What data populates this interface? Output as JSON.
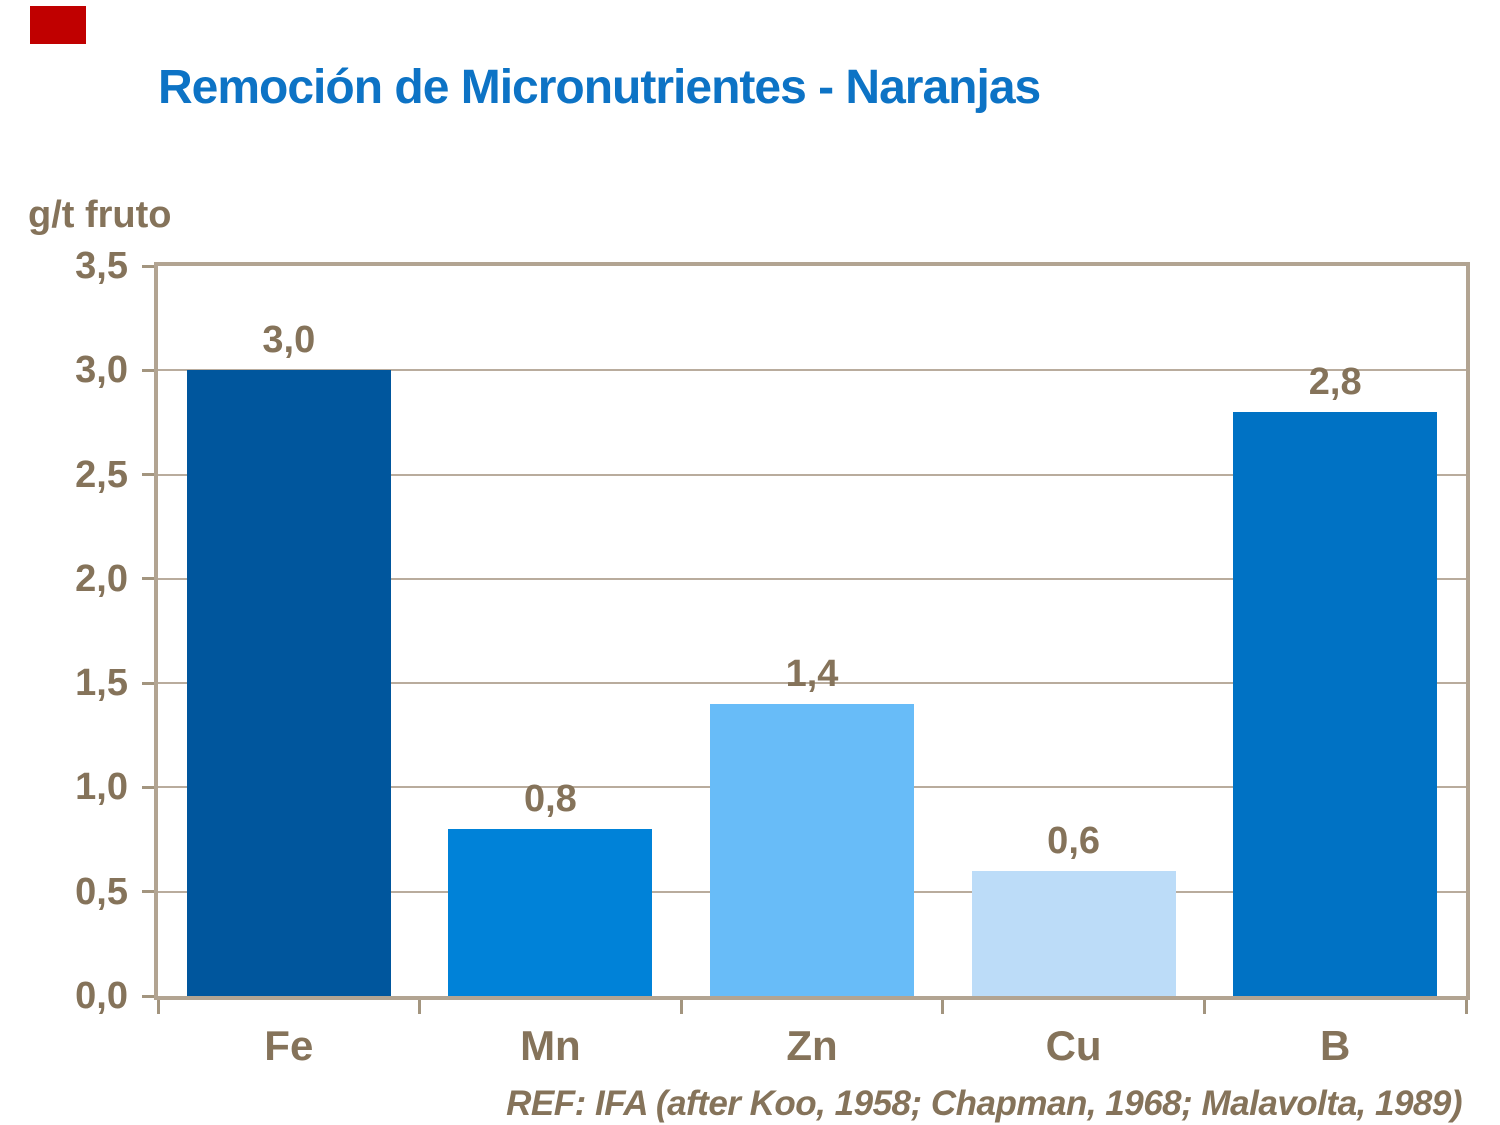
{
  "slide": {
    "accent_color": "#c00000",
    "title_color": "#0d73c5",
    "text_color": "#85735a",
    "reference": "REF: IFA (after Koo, 1958; Chapman, 1968; Malavolta, 1989)"
  },
  "chart_data": {
    "type": "bar",
    "title": "Remoción de Micronutrientes - Naranjas",
    "ylabel": "g/t fruto",
    "xlabel": "",
    "categories": [
      "Fe",
      "Mn",
      "Zn",
      "Cu",
      "B"
    ],
    "values": [
      3.0,
      0.8,
      1.4,
      0.6,
      2.8
    ],
    "value_labels": [
      "3,0",
      "0,8",
      "1,4",
      "0,6",
      "2,8"
    ],
    "bar_colors": [
      "#00569d",
      "#0082d8",
      "#68bcf8",
      "#bcdcf8",
      "#0072c4"
    ],
    "ylim": [
      0,
      3.5
    ],
    "ytick_step": 0.5,
    "ytick_labels": [
      "0,0",
      "0,5",
      "1,0",
      "1,5",
      "2,0",
      "2,5",
      "3,0",
      "3,5"
    ],
    "grid": true,
    "legend": "none",
    "gridline_color": "#b9ac9d",
    "axis_color": "#b2a492",
    "tick_color": "#a3957f",
    "label_color": "#85735a"
  }
}
